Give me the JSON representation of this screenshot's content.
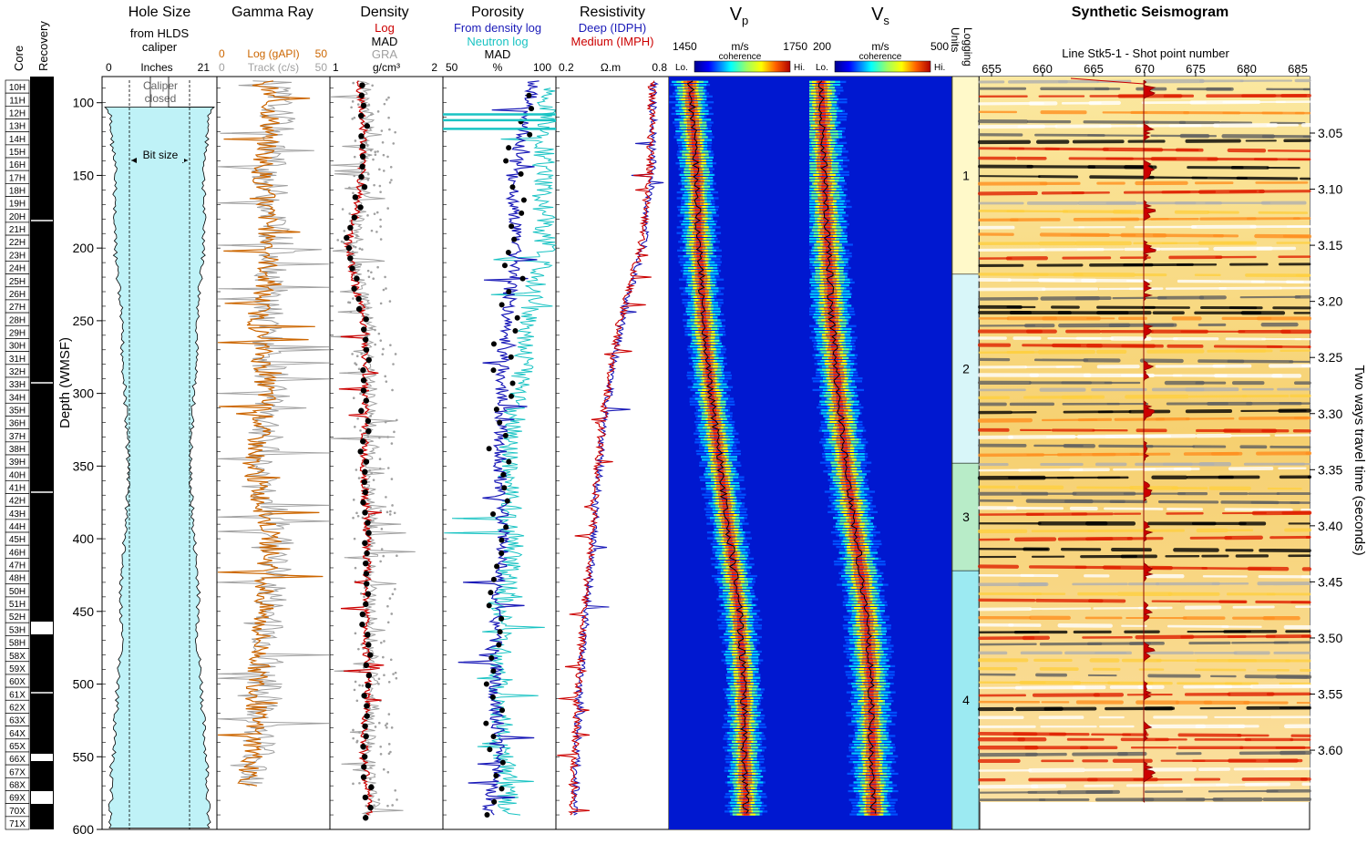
{
  "colors": {
    "log_red": "#cc0000",
    "gamma_orange": "#cc6600",
    "gray": "#a0a0a0",
    "deep_blue": "#1a1ab8",
    "neutron_cyan": "#19c3c3",
    "hole_fill": "#bff2f7",
    "unit1": "#fff9c9",
    "unit2": "#d8f6f9",
    "unit3": "#b8ecc8",
    "unit4": "#9ceaf2"
  },
  "depth_axis": {
    "label": "Depth (WMSF)",
    "ticks": [
      100,
      150,
      200,
      250,
      300,
      350,
      400,
      450,
      500,
      550,
      600
    ],
    "range": [
      82,
      600
    ]
  },
  "time_axis": {
    "label": "Two ways travel time (seconds)",
    "ticks": [
      "3.05",
      "3.10",
      "3.15",
      "3.20",
      "3.25",
      "3.30",
      "3.35",
      "3.40",
      "3.45",
      "3.50",
      "3.55",
      "3.60"
    ]
  },
  "core_column": {
    "labels": {
      "core": "Core",
      "recovery": "Recovery"
    },
    "cores": [
      "10H",
      "11H",
      "12H",
      "13H",
      "14H",
      "15H",
      "16H",
      "17H",
      "18H",
      "19H",
      "20H",
      "21H",
      "22H",
      "23H",
      "24H",
      "25H",
      "26H",
      "27H",
      "28H",
      "29H",
      "30H",
      "31H",
      "32H",
      "33H",
      "34H",
      "35H",
      "36H",
      "37H",
      "38H",
      "39H",
      "40H",
      "41H",
      "42H",
      "43H",
      "44H",
      "45H",
      "46H",
      "47H",
      "48H",
      "50H",
      "51H",
      "52H",
      "53H",
      "58H",
      "58X",
      "59X",
      "60X",
      "61X",
      "62X",
      "63X",
      "64X",
      "65X",
      "66X",
      "67X",
      "68X",
      "69X",
      "70X",
      "71X"
    ]
  },
  "tracks": {
    "hole": {
      "title": "Hole Size",
      "subtitle1": "from HLDS",
      "subtitle2": "caliper",
      "min": "0",
      "unit": "Inches",
      "max": "21",
      "note1": "Caliper",
      "note2": "closed",
      "bit_label": "Bit size"
    },
    "gamma": {
      "title": "Gamma Ray",
      "log_min": "0",
      "log_label": "Log (gAPI)",
      "log_max": "50",
      "track_min": "0",
      "track_label": "Track (c/s)",
      "track_max": "50"
    },
    "density": {
      "title": "Density",
      "line1": "Log",
      "line2": "MAD",
      "line3": "GRA",
      "min": "1",
      "unit": "g/cm³",
      "max": "2"
    },
    "porosity": {
      "title": "Porosity",
      "line1": "From density log",
      "line2": "Neutron log",
      "line3": "MAD",
      "min": "50",
      "unit": "%",
      "max": "100"
    },
    "resistivity": {
      "title": "Resistivity",
      "line1": "Deep (IDPH)",
      "line2": "Medium (IMPH)",
      "min": "0.2",
      "unit": "Ω.m",
      "max": "0.8"
    },
    "vp": {
      "title": "V",
      "sub": "p",
      "min": "1450",
      "unit": "m/s",
      "max": "1750",
      "coherence": "coherence",
      "lo": "Lo.",
      "hi": "Hi."
    },
    "vs": {
      "title": "V",
      "sub": "s",
      "min": "200",
      "unit": "m/s",
      "max": "500",
      "coherence": "coherence",
      "lo": "Lo.",
      "hi": "Hi."
    },
    "units": {
      "title1": "Logging",
      "title2": "Units"
    },
    "seismic": {
      "title": "Synthetic Seismogram",
      "line_label": "Line Stk5-1 - Shot point number",
      "ticks": [
        "655",
        "660",
        "665",
        "670",
        "675",
        "680",
        "685"
      ]
    }
  },
  "chart_data": {
    "type": "line",
    "title": "",
    "depth_ticks": [
      100,
      150,
      200,
      250,
      300,
      350,
      400,
      450,
      500,
      550,
      600
    ],
    "logging_units": [
      {
        "name": "1",
        "top": 82,
        "bottom": 218
      },
      {
        "name": "2",
        "top": 218,
        "bottom": 348
      },
      {
        "name": "3",
        "top": 348,
        "bottom": 422
      },
      {
        "name": "4",
        "top": 422,
        "bottom": 600
      }
    ],
    "series": [
      {
        "name": "Caliper (Inches)",
        "track": "hole",
        "range": [
          0,
          21
        ],
        "depth": [
          82,
          103,
          110,
          150,
          200,
          230,
          270,
          300,
          350,
          390,
          430,
          455,
          470,
          500,
          530,
          560,
          600
        ],
        "values": [
          9.5,
          20.5,
          19.5,
          18.6,
          18.7,
          17.8,
          17.3,
          16.8,
          16.1,
          16.6,
          17.6,
          17.6,
          17.4,
          18.2,
          18.6,
          19.3,
          19.5
        ]
      },
      {
        "name": "Bit size",
        "track": "hole",
        "range": [
          0,
          21
        ],
        "value": 11.625
      },
      {
        "name": "Log (gAPI)",
        "track": "gamma",
        "range": [
          0,
          50
        ],
        "depth": [
          85,
          110,
          150,
          200,
          250,
          300,
          350,
          400,
          450,
          500,
          550,
          570
        ],
        "values": [
          22,
          24,
          20,
          24,
          18,
          22,
          16,
          24,
          20,
          18,
          16,
          14
        ]
      },
      {
        "name": "Log (g/cm3)",
        "track": "density",
        "range": [
          1,
          2
        ],
        "depth": [
          85,
          120,
          160,
          200,
          250,
          300,
          350,
          400,
          450,
          500,
          550,
          590
        ],
        "values": [
          1.26,
          1.3,
          1.27,
          1.16,
          1.3,
          1.32,
          1.3,
          1.33,
          1.32,
          1.33,
          1.3,
          1.35
        ]
      },
      {
        "name": "From density log (%)",
        "track": "porosity",
        "range": [
          50,
          100
        ],
        "depth": [
          85,
          150,
          200,
          250,
          300,
          350,
          400,
          450,
          500,
          550,
          590
        ],
        "values": [
          90,
          81,
          82,
          78,
          76,
          75,
          77,
          73,
          73,
          75,
          70
        ]
      },
      {
        "name": "Neutron log (%)",
        "track": "porosity",
        "range": [
          50,
          100
        ],
        "depth": [
          90,
          150,
          200,
          250,
          300,
          350,
          400,
          450,
          500,
          550,
          590
        ],
        "values": [
          97,
          94,
          95,
          88,
          84,
          78,
          82,
          76,
          75,
          77,
          80
        ]
      },
      {
        "name": "Deep (IDPH) (ohm.m)",
        "track": "resistivity",
        "range": [
          0.2,
          0.8
        ],
        "depth": [
          85,
          150,
          200,
          250,
          300,
          350,
          400,
          450,
          500,
          550,
          590
        ],
        "values": [
          0.72,
          0.71,
          0.66,
          0.55,
          0.48,
          0.43,
          0.4,
          0.36,
          0.33,
          0.31,
          0.3
        ]
      },
      {
        "name": "Vp (m/s)",
        "track": "vp",
        "range": [
          1450,
          1750
        ],
        "depth": [
          85,
          150,
          200,
          250,
          300,
          350,
          400,
          450,
          500,
          550,
          590
        ],
        "values": [
          1495,
          1510,
          1515,
          1525,
          1540,
          1560,
          1580,
          1600,
          1610,
          1612,
          1615
        ]
      },
      {
        "name": "Vs (m/s)",
        "track": "vs",
        "range": [
          200,
          500
        ],
        "depth": [
          85,
          150,
          200,
          250,
          300,
          350,
          400,
          450,
          500,
          550,
          590
        ],
        "values": [
          225,
          232,
          240,
          248,
          262,
          278,
          300,
          320,
          330,
          333,
          336
        ]
      }
    ]
  }
}
